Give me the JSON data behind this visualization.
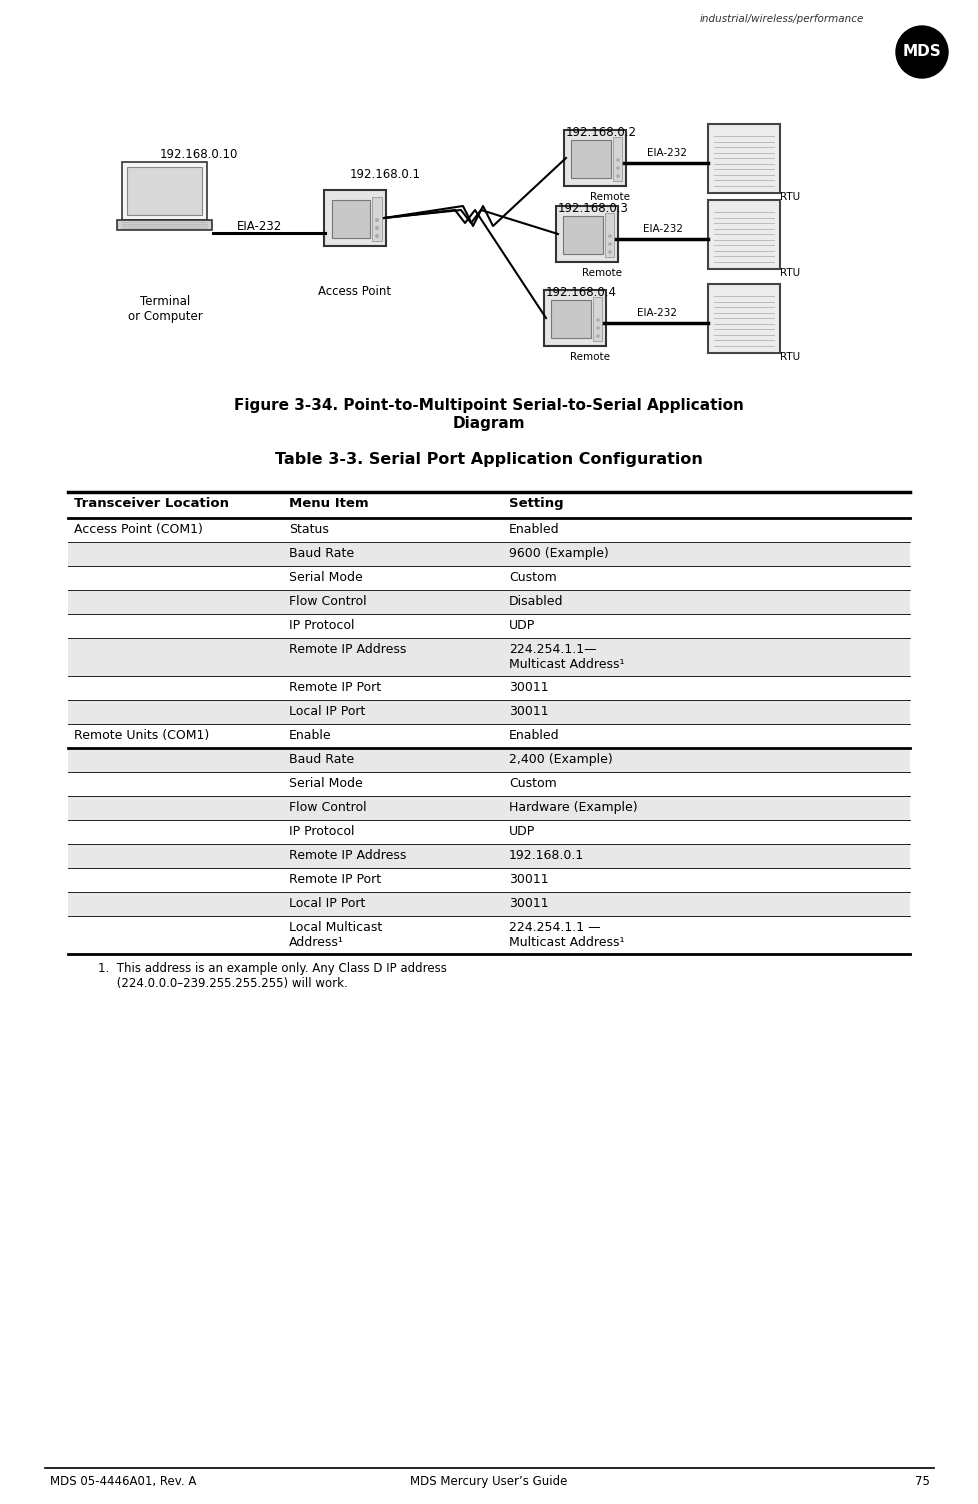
{
  "page_title_left": "MDS 05-4446A01, Rev. A",
  "page_title_center": "MDS Mercury User’s Guide",
  "page_number": "75",
  "header_text": "industrial/wireless/performance",
  "figure_caption_line1": "Figure 3-34. Point-to-Multipoint Serial-to-Serial Application",
  "figure_caption_line2": "Diagram",
  "table_title": "Table 3-3. Serial Port Application Configuration",
  "table_headers": [
    "Transceiver Location",
    "Menu Item",
    "Setting"
  ],
  "table_rows": [
    [
      "Access Point (COM1)",
      "Status",
      "Enabled"
    ],
    [
      "",
      "Baud Rate",
      "9600 (Example)"
    ],
    [
      "",
      "Serial Mode",
      "Custom"
    ],
    [
      "",
      "Flow Control",
      "Disabled"
    ],
    [
      "",
      "IP Protocol",
      "UDP"
    ],
    [
      "",
      "Remote IP Address",
      "224.254.1.1—\nMulticast Address¹"
    ],
    [
      "",
      "Remote IP Port",
      "30011"
    ],
    [
      "",
      "Local IP Port",
      "30011"
    ],
    [
      "Remote Units (COM1)",
      "Enable",
      "Enabled"
    ],
    [
      "",
      "Baud Rate",
      "2,400 (Example)"
    ],
    [
      "",
      "Serial Mode",
      "Custom"
    ],
    [
      "",
      "Flow Control",
      "Hardware (Example)"
    ],
    [
      "",
      "IP Protocol",
      "UDP"
    ],
    [
      "",
      "Remote IP Address",
      "192.168.0.1"
    ],
    [
      "",
      "Remote IP Port",
      "30011"
    ],
    [
      "",
      "Local IP Port",
      "30011"
    ],
    [
      "",
      "Local Multicast\nAddress¹",
      "224.254.1.1 —\nMulticast Address¹"
    ]
  ],
  "footnote": "1.  This address is an example only. Any Class D IP address\n     (224.0.0.0–239.255.255.255) will work.",
  "diagram": {
    "ip_laptop": "192.168.0.10",
    "ip_access": "192.168.0.1",
    "ip_remote1": "192.168.0.2",
    "ip_remote2": "192.168.0.3",
    "ip_remote3": "192.168.0.4",
    "label_terminal": "Terminal\nor Computer",
    "label_access": "Access Point",
    "label_remote": "Remote",
    "label_rtu": "RTU",
    "label_eia": "EIA-232"
  },
  "bg_color": "#ffffff",
  "shaded_row_bg": "#e8e8e8"
}
